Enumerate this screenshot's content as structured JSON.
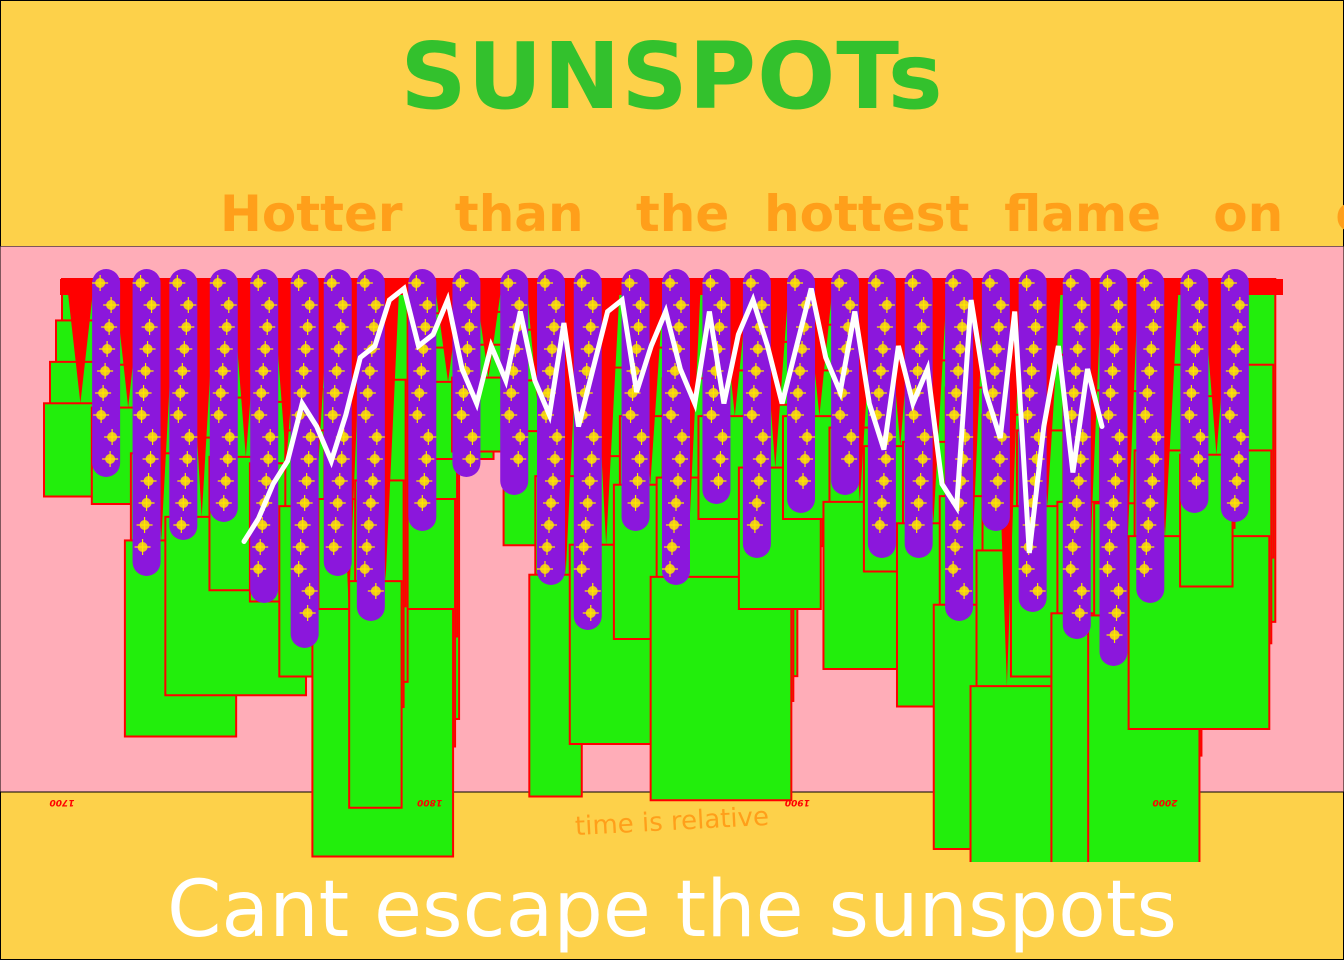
{
  "header": {
    "title": "SUNSPOTs",
    "subtitle": "Hotter   than   the  hottest  flame   on   earth"
  },
  "footer": {
    "caption": "Cant escape the sunspots"
  },
  "colors": {
    "page_bg": "#fdd14a",
    "plot_bg": "#ffadb8",
    "rect_fill": "#22ee0c",
    "rect_stroke": "#ff0000",
    "red_area": "#ff0000",
    "purple_bar": "#8b17dc",
    "sparkle": "#ffe600",
    "line": "#ffffff",
    "title": "#33c12d",
    "subtitle": "#ff9f1a",
    "axis_text": "#ff0000",
    "xlabel": "#ff9f1a"
  },
  "chart_data": {
    "type": "line",
    "title": "SUNSPOTs",
    "subtitle": "Hotter   than   the  hottest  flame   on   earth",
    "xlabel": "time is relative",
    "ylabel": "",
    "xlim": [
      1700,
      2023
    ],
    "ylim": [
      0,
      280
    ],
    "x_ticks": [
      "1700",
      "1800",
      "1900",
      "2000"
    ],
    "grid": false,
    "legend": "none",
    "sunspot_cycles": {
      "x": [
        1705,
        1718,
        1727,
        1738,
        1750,
        1761,
        1769,
        1778,
        1788,
        1805,
        1816,
        1830,
        1837,
        1848,
        1860,
        1870,
        1883,
        1894,
        1906,
        1917,
        1928,
        1937,
        1947,
        1957,
        1968,
        1979,
        1989,
        2000,
        2014
      ],
      "values": [
        58,
        60,
        122,
        111,
        83,
        86,
        106,
        154,
        141,
        48,
        46,
        71,
        138,
        124,
        96,
        139,
        64,
        88,
        64,
        104,
        78,
        114,
        152,
        190,
        106,
        156,
        157,
        120,
        82
      ]
    },
    "cycle_minima": {
      "x": [
        1712,
        1723,
        1733,
        1744,
        1755,
        1766,
        1775,
        1784,
        1798,
        1810,
        1823,
        1833,
        1843,
        1856,
        1867,
        1878,
        1889,
        1901,
        1913,
        1923,
        1933,
        1944,
        1954,
        1964,
        1976,
        1986,
        1996,
        2008,
        2019
      ],
      "values": [
        0,
        11,
        7,
        5,
        14,
        19,
        11,
        16,
        6,
        0,
        2,
        12,
        17,
        6,
        12,
        3,
        9,
        4,
        2,
        9,
        9,
        16,
        6,
        15,
        18,
        21,
        14,
        4,
        5
      ]
    },
    "series": [
      {
        "values": [
          30,
          50,
          80,
          100,
          150,
          130,
          100,
          140,
          190,
          200,
          240,
          250,
          200,
          210,
          240,
          180,
          150,
          200,
          170,
          230,
          170,
          140,
          220,
          130,
          180,
          230,
          240,
          160,
          200,
          230,
          180,
          150,
          230,
          150,
          210,
          240,
          200,
          150,
          200,
          250,
          190,
          160,
          230,
          150,
          110,
          200,
          150,
          180,
          80,
          60,
          240,
          160,
          120,
          230,
          20,
          130,
          200,
          90,
          180,
          130
        ]
      }
    ]
  }
}
